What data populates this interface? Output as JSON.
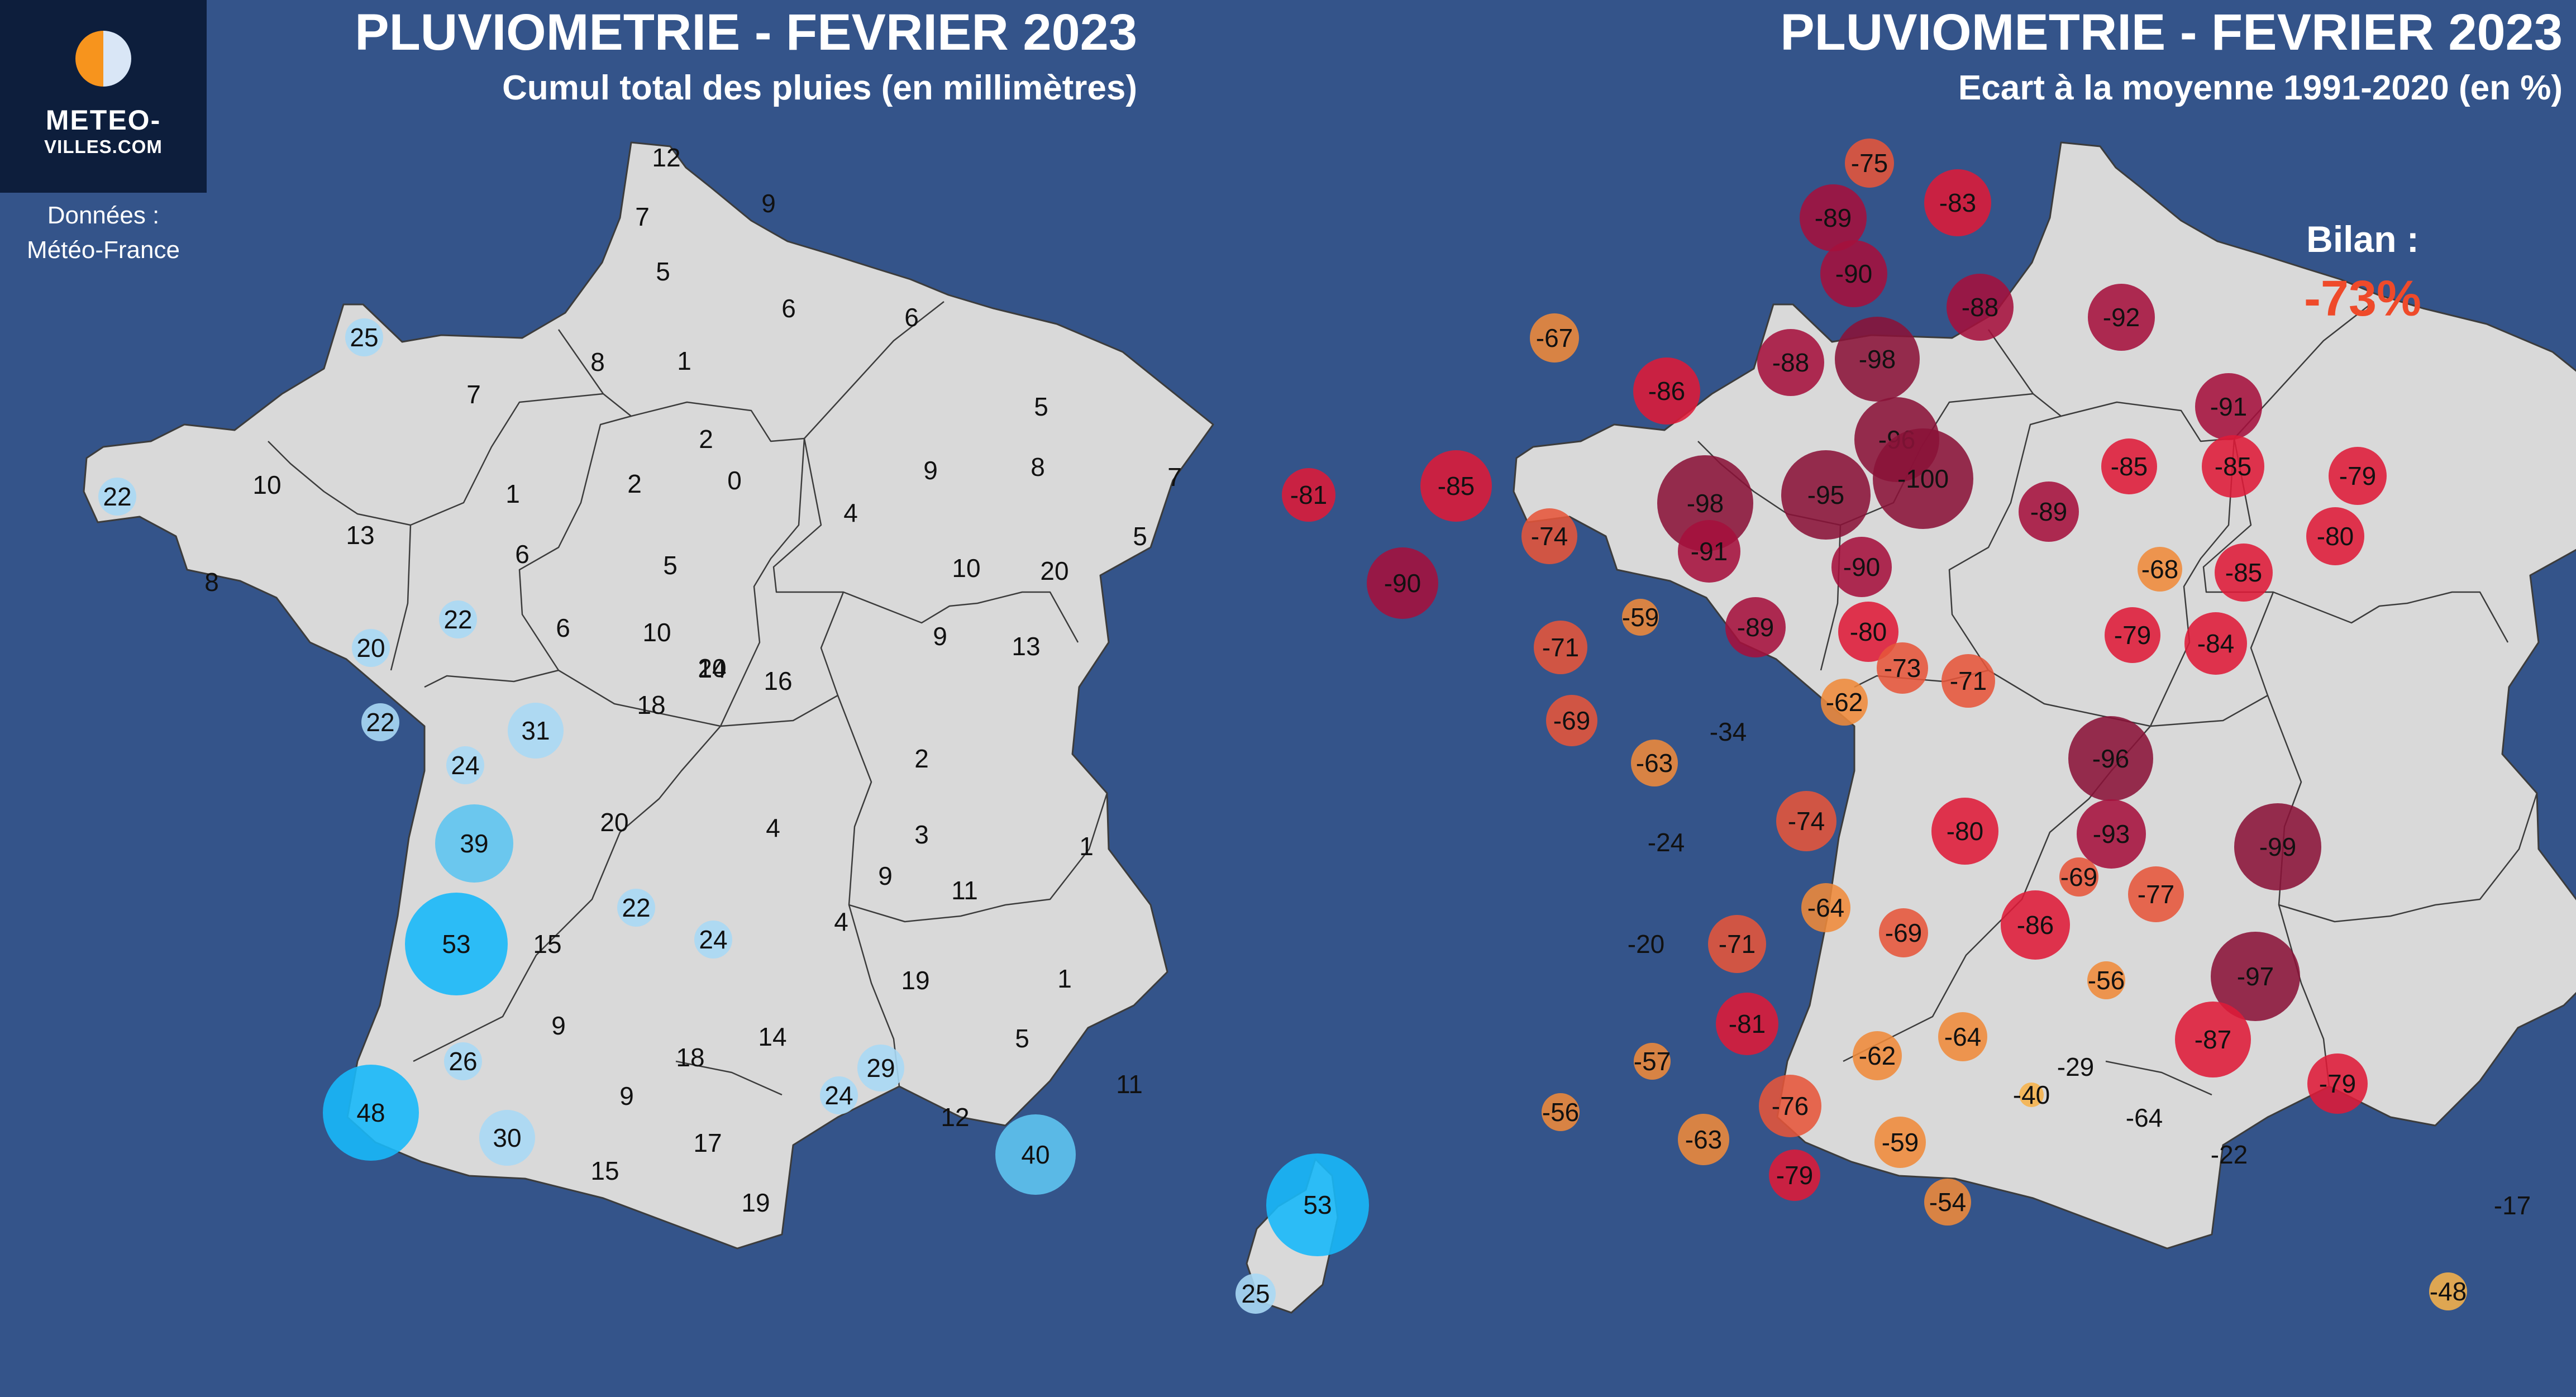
{
  "colors": {
    "background": "#34548a",
    "land": "#d9d9d9",
    "border": "#3c3c3c",
    "rain_light": "#a8d8f4",
    "rain_mid": "#5ec4f0",
    "rain_heavy": "#18b8f8",
    "anom_weak": "#f6b24a",
    "anom_moderate": "#ef8a3a",
    "anom_strong": "#e6553a",
    "anom_very_strong": "#de1a38",
    "anom_extreme": "#a5103c",
    "anom_max": "#8a1238",
    "bilan_value": "#ef4a2a",
    "logo_bg": "#0d1e3c",
    "logo_sun": "#f7941d"
  },
  "logo": {
    "icon": "sun-moon-disc-icon",
    "name": "METEO-",
    "domain": "VILLES.COM"
  },
  "source": {
    "line1": "Données :",
    "line2": "Météo-France"
  },
  "panels": {
    "left": {
      "title": "PLUVIOMETRIE - FEVRIER 2023",
      "subtitle": "Cumul total des pluies (en millimètres)"
    },
    "right": {
      "title": "PLUVIOMETRIE - FEVRIER 2023",
      "subtitle": "Ecart à la moyenne 1991-2020 (en %)"
    }
  },
  "bilan": {
    "label": "Bilan :",
    "value": "-73%"
  },
  "rain_values": [
    "12",
    "9",
    "7",
    "5",
    "6",
    "6",
    "8",
    "1",
    "7",
    "25",
    "5",
    "2",
    "0",
    "9",
    "8",
    "7",
    "22",
    "10",
    "1",
    "2",
    "4",
    "5",
    "5",
    "13",
    "6",
    "8",
    "22",
    "6",
    "10",
    "20",
    "10",
    "20",
    "9",
    "13",
    "20",
    "14",
    "16",
    "22",
    "31",
    "18",
    "24",
    "2",
    "20",
    "39",
    "4",
    "3",
    "9",
    "11",
    "1",
    "53",
    "22",
    "15",
    "24",
    "4",
    "19",
    "9",
    "1",
    "26",
    "14",
    "29",
    "18",
    "5",
    "48",
    "24",
    "9",
    "11",
    "30",
    "12",
    "17",
    "40",
    "15",
    "19",
    "53",
    "25"
  ],
  "anomaly_values": [
    "-75",
    "-89",
    "-83",
    "-90",
    "-88",
    "-92",
    "-67",
    "-98",
    "-88",
    "-86",
    "-96",
    "-91",
    "-81",
    "-85",
    "-95",
    "-100",
    "-98",
    "-85",
    "-89",
    "-85",
    "-79",
    "-74",
    "-91",
    "-90",
    "-68",
    "-80",
    "-90",
    "-85",
    "-59",
    "-89",
    "-80",
    "-79",
    "-84",
    "-71",
    "-73",
    "-71",
    "-62",
    "-69",
    "-34",
    "-96",
    "-63",
    "-74",
    "-80",
    "-24",
    "-93",
    "-99",
    "-69",
    "-77",
    "-64",
    "-20",
    "-71",
    "-69",
    "-86",
    "-56",
    "-97",
    "-81",
    "-87",
    "-57",
    "-62",
    "-64",
    "-76",
    "-29",
    "-40",
    "-79",
    "-56",
    "-64",
    "-63",
    "-59",
    "-79",
    "-22",
    "-54",
    "-17",
    "-48"
  ]
}
